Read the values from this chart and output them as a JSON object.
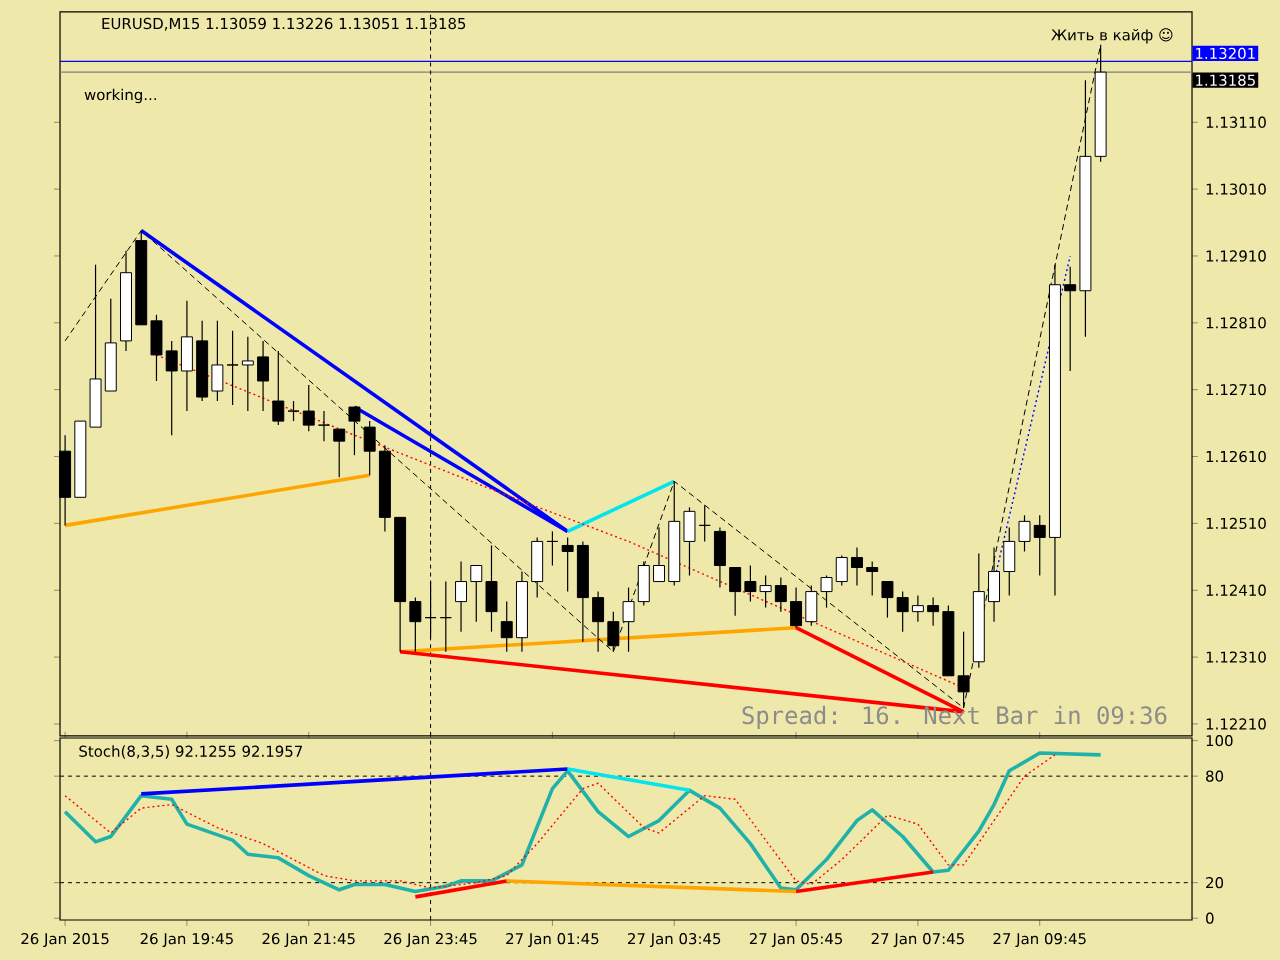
{
  "chart_data": [
    {
      "type": "candlestick",
      "title": "EURUSD,M15  1.13059 1.13226 1.13051 1.13185",
      "annotations": [
        "working...",
        "Жить в кайф ☺",
        "Spread: 16. Next Bar in 09:36"
      ],
      "x": [
        "2015-01-26T17:45",
        "2015-01-26T18:00",
        "2015-01-26T18:15",
        "2015-01-26T18:30",
        "2015-01-26T18:45",
        "2015-01-26T19:00",
        "2015-01-26T19:15",
        "2015-01-26T19:30",
        "2015-01-26T19:45",
        "2015-01-26T20:00",
        "2015-01-26T20:15",
        "2015-01-26T20:30",
        "2015-01-26T20:45",
        "2015-01-26T21:00",
        "2015-01-26T21:15",
        "2015-01-26T21:30",
        "2015-01-26T21:45",
        "2015-01-26T22:00",
        "2015-01-26T22:15",
        "2015-01-26T22:30",
        "2015-01-26T22:45",
        "2015-01-26T23:00",
        "2015-01-26T23:15",
        "2015-01-26T23:30",
        "2015-01-26T23:45",
        "2015-01-27T00:00",
        "2015-01-27T00:15",
        "2015-01-27T00:30",
        "2015-01-27T00:45",
        "2015-01-27T01:00",
        "2015-01-27T01:15",
        "2015-01-27T01:30",
        "2015-01-27T01:45",
        "2015-01-27T02:00",
        "2015-01-27T02:15",
        "2015-01-27T02:30",
        "2015-01-27T02:45",
        "2015-01-27T03:00",
        "2015-01-27T03:15",
        "2015-01-27T03:30",
        "2015-01-27T03:45",
        "2015-01-27T04:00",
        "2015-01-27T04:15",
        "2015-01-27T04:30",
        "2015-01-27T04:45",
        "2015-01-27T05:00",
        "2015-01-27T05:15",
        "2015-01-27T05:30",
        "2015-01-27T05:45",
        "2015-01-27T06:00",
        "2015-01-27T06:15",
        "2015-01-27T06:30",
        "2015-01-27T06:45",
        "2015-01-27T07:00",
        "2015-01-27T07:15",
        "2015-01-27T07:30",
        "2015-01-27T07:45",
        "2015-01-27T08:00",
        "2015-01-27T08:15",
        "2015-01-27T08:30",
        "2015-01-27T08:45",
        "2015-01-27T09:00",
        "2015-01-27T09:15",
        "2015-01-27T09:30",
        "2015-01-27T09:45",
        "2015-01-27T10:00",
        "2015-01-27T10:15",
        "2015-01-27T10:30",
        "2015-01-27T10:45"
      ],
      "ohlc": [
        [
          1.12618,
          1.12642,
          1.12507,
          1.12549
        ],
        [
          1.12549,
          1.12663,
          1.12549,
          1.12663
        ],
        [
          1.12654,
          1.12897,
          1.12654,
          1.12726
        ],
        [
          1.12708,
          1.12846,
          1.12708,
          1.1278
        ],
        [
          1.12783,
          1.12918,
          1.12768,
          1.12885
        ],
        [
          1.12933,
          1.12948,
          1.12807,
          1.12807
        ],
        [
          1.12813,
          1.12822,
          1.12723,
          1.12762
        ],
        [
          1.12768,
          1.12783,
          1.12642,
          1.12738
        ],
        [
          1.12738,
          1.12843,
          1.12678,
          1.12789
        ],
        [
          1.12783,
          1.12813,
          1.12693,
          1.12699
        ],
        [
          1.12708,
          1.12813,
          1.12693,
          1.12747
        ],
        [
          1.12747,
          1.12798,
          1.12687,
          1.12747
        ],
        [
          1.12747,
          1.12789,
          1.12678,
          1.12753
        ],
        [
          1.12759,
          1.12783,
          1.12678,
          1.12723
        ],
        [
          1.12693,
          1.12768,
          1.12657,
          1.12663
        ],
        [
          1.12678,
          1.12693,
          1.12663,
          1.12678
        ],
        [
          1.12678,
          1.12717,
          1.12648,
          1.12657
        ],
        [
          1.12657,
          1.12678,
          1.12633,
          1.12657
        ],
        [
          1.12651,
          1.12651,
          1.12579,
          1.12633
        ],
        [
          1.12684,
          1.12684,
          1.12612,
          1.12663
        ],
        [
          1.12654,
          1.12663,
          1.12582,
          1.12618
        ],
        [
          1.12618,
          1.12627,
          1.12498,
          1.12519
        ],
        [
          1.12519,
          1.12519,
          1.12318,
          1.12393
        ],
        [
          1.12393,
          1.12399,
          1.12318,
          1.12363
        ],
        [
          1.12369,
          1.12423,
          1.12339,
          1.12369
        ],
        [
          1.12369,
          1.12423,
          1.12318,
          1.12369
        ],
        [
          1.12393,
          1.12453,
          1.12348,
          1.12423
        ],
        [
          1.12423,
          1.12447,
          1.12363,
          1.12447
        ],
        [
          1.12423,
          1.12477,
          1.12348,
          1.12378
        ],
        [
          1.12363,
          1.12393,
          1.12318,
          1.12339
        ],
        [
          1.12339,
          1.12438,
          1.12318,
          1.12423
        ],
        [
          1.12423,
          1.12489,
          1.12399,
          1.12483
        ],
        [
          1.12483,
          1.12498,
          1.12447,
          1.12483
        ],
        [
          1.12477,
          1.12489,
          1.12408,
          1.12468
        ],
        [
          1.12477,
          1.12483,
          1.12333,
          1.12399
        ],
        [
          1.12399,
          1.12408,
          1.12318,
          1.12363
        ],
        [
          1.12363,
          1.12378,
          1.12318,
          1.12327
        ],
        [
          1.12363,
          1.12414,
          1.12318,
          1.12393
        ],
        [
          1.12393,
          1.12453,
          1.12387,
          1.12447
        ],
        [
          1.12423,
          1.12504,
          1.12423,
          1.12447
        ],
        [
          1.12423,
          1.12573,
          1.12417,
          1.12513
        ],
        [
          1.12483,
          1.12534,
          1.12432,
          1.12528
        ],
        [
          1.12507,
          1.12537,
          1.12483,
          1.12507
        ],
        [
          1.12498,
          1.12504,
          1.12414,
          1.12447
        ],
        [
          1.12444,
          1.12444,
          1.12372,
          1.12408
        ],
        [
          1.12423,
          1.12447,
          1.12393,
          1.12408
        ],
        [
          1.12408,
          1.12432,
          1.12384,
          1.12417
        ],
        [
          1.12417,
          1.12429,
          1.12378,
          1.12393
        ],
        [
          1.12393,
          1.12414,
          1.12354,
          1.12357
        ],
        [
          1.12363,
          1.12417,
          1.12357,
          1.12408
        ],
        [
          1.12408,
          1.12432,
          1.12384,
          1.12429
        ],
        [
          1.12423,
          1.12462,
          1.12417,
          1.12459
        ],
        [
          1.12459,
          1.12474,
          1.12417,
          1.12444
        ],
        [
          1.12444,
          1.12453,
          1.12402,
          1.12438
        ],
        [
          1.12423,
          1.12423,
          1.12369,
          1.12399
        ],
        [
          1.12399,
          1.12408,
          1.12348,
          1.12378
        ],
        [
          1.12378,
          1.12402,
          1.12363,
          1.12387
        ],
        [
          1.12387,
          1.12399,
          1.12357,
          1.12378
        ],
        [
          1.12378,
          1.12387,
          1.12282,
          1.12282
        ],
        [
          1.12282,
          1.12348,
          1.12234,
          1.12258
        ],
        [
          1.12303,
          1.12465,
          1.12294,
          1.12408
        ],
        [
          1.12393,
          1.12474,
          1.12363,
          1.12438
        ],
        [
          1.12438,
          1.12504,
          1.12402,
          1.12483
        ],
        [
          1.12483,
          1.12522,
          1.12468,
          1.12513
        ],
        [
          1.12507,
          1.12522,
          1.12432,
          1.12489
        ],
        [
          1.12489,
          1.12897,
          1.12402,
          1.12867
        ],
        [
          1.12867,
          1.12894,
          1.12738,
          1.12858
        ],
        [
          1.12858,
          1.13173,
          1.12789,
          1.13059
        ],
        [
          1.13059,
          1.13226,
          1.13051,
          1.13185
        ]
      ],
      "series": [
        {
          "type": "line",
          "color": "#0000ff",
          "line_style": "solid",
          "x": [
            "2015-01-26T19:00",
            "2015-01-27T02:00"
          ],
          "values": [
            1.12948,
            1.12498
          ]
        },
        {
          "type": "line",
          "color": "#0000ff",
          "line_style": "solid",
          "x": [
            "2015-01-26T22:30",
            "2015-01-27T02:00"
          ],
          "values": [
            1.12684,
            1.12498
          ]
        },
        {
          "type": "line",
          "color": "#ffa500",
          "line_style": "solid",
          "x": [
            "2015-01-26T17:45",
            "2015-01-26T22:45"
          ],
          "values": [
            1.12507,
            1.12582
          ]
        },
        {
          "type": "line",
          "color": "#00e5ee",
          "line_style": "solid",
          "x": [
            "2015-01-27T02:00",
            "2015-01-27T03:45"
          ],
          "values": [
            1.12498,
            1.12573
          ]
        },
        {
          "type": "line",
          "color": "#ffa500",
          "line_style": "solid",
          "x": [
            "2015-01-26T23:15",
            "2015-01-27T05:45"
          ],
          "values": [
            1.12318,
            1.12354
          ]
        },
        {
          "type": "line",
          "color": "#ff0000",
          "line_style": "solid",
          "x": [
            "2015-01-26T23:15",
            "2015-01-27T08:30"
          ],
          "values": [
            1.12318,
            1.12228
          ]
        },
        {
          "type": "line",
          "color": "#ff0000",
          "line_style": "solid",
          "x": [
            "2015-01-27T05:45",
            "2015-01-27T08:30"
          ],
          "values": [
            1.12354,
            1.12228
          ]
        },
        {
          "type": "line",
          "color": "#000000",
          "line_style": "dashed",
          "x": [
            "2015-01-26T17:45",
            "2015-01-26T19:00",
            "2015-01-27T02:45",
            "2015-01-27T03:45",
            "2015-01-27T08:30",
            "2015-01-27T10:45"
          ],
          "values": [
            1.12783,
            1.12948,
            1.12318,
            1.12573,
            1.12234,
            1.13226
          ]
        },
        {
          "type": "line",
          "color": "#ff0000",
          "line_style": "dotted",
          "x": [
            "2015-01-26T19:15",
            "2015-01-26T22:30",
            "2015-01-27T01:00",
            "2015-01-27T03:00",
            "2015-01-27T08:30"
          ],
          "values": [
            1.12762,
            1.12642,
            1.12552,
            1.12483,
            1.12264
          ]
        },
        {
          "type": "line",
          "color": "#0000ff",
          "line_style": "dotted",
          "x": [
            "2015-01-27T09:00",
            "2015-01-27T10:15"
          ],
          "values": [
            1.12423,
            1.1291
          ]
        }
      ],
      "xlim": [
        "2015-01-26T17:40",
        "2015-01-27T12:15"
      ],
      "ylim": [
        1.12192,
        1.13275
      ],
      "yticks": [
        {
          "value": 1.1221,
          "label": "1.12210"
        },
        {
          "value": 1.1231,
          "label": "1.12310"
        },
        {
          "value": 1.1241,
          "label": "1.12410"
        },
        {
          "value": 1.1251,
          "label": "1.12510"
        },
        {
          "value": 1.1261,
          "label": "1.12610"
        },
        {
          "value": 1.1271,
          "label": "1.12710"
        },
        {
          "value": 1.1281,
          "label": "1.12810"
        },
        {
          "value": 1.1291,
          "label": "1.12910"
        },
        {
          "value": 1.1301,
          "label": "1.13010"
        },
        {
          "value": 1.1311,
          "label": "1.13110"
        }
      ],
      "ref_lines": [
        {
          "axis": "y",
          "value": 1.13201,
          "label": "1.13201",
          "color": "#0000ff",
          "line_style": "solid"
        },
        {
          "axis": "y",
          "value": 1.13185,
          "label": "1.13185",
          "color": "#808080",
          "line_style": "solid"
        },
        {
          "axis": "x",
          "value": "2015-01-26T23:45",
          "color": "#000000",
          "line_style": "dashed"
        }
      ],
      "tick_labels": "y"
    },
    {
      "type": "line",
      "title": "Stoch(8,3,5) 92.1255 92.1957",
      "series": [
        {
          "color": "#20b2aa",
          "line_style": "solid",
          "x": [
            "2015-01-26T17:45",
            "2015-01-26T18:15",
            "2015-01-26T18:30",
            "2015-01-26T19:00",
            "2015-01-26T19:30",
            "2015-01-26T19:45",
            "2015-01-26T20:30",
            "2015-01-26T20:45",
            "2015-01-26T21:15",
            "2015-01-26T21:45",
            "2015-01-26T22:15",
            "2015-01-26T22:30",
            "2015-01-26T23:00",
            "2015-01-26T23:30",
            "2015-01-27T00:00",
            "2015-01-27T00:15",
            "2015-01-27T00:45",
            "2015-01-27T01:15",
            "2015-01-27T01:45",
            "2015-01-27T02:00",
            "2015-01-27T02:30",
            "2015-01-27T03:00",
            "2015-01-27T03:30",
            "2015-01-27T04:00",
            "2015-01-27T04:30",
            "2015-01-27T05:00",
            "2015-01-27T05:30",
            "2015-01-27T05:45",
            "2015-01-27T06:15",
            "2015-01-27T06:45",
            "2015-01-27T07:00",
            "2015-01-27T07:30",
            "2015-01-27T08:00",
            "2015-01-27T08:15",
            "2015-01-27T08:45",
            "2015-01-27T09:00",
            "2015-01-27T09:15",
            "2015-01-27T09:45",
            "2015-01-27T10:45"
          ],
          "values": [
            60,
            43,
            46,
            69,
            67,
            53,
            44,
            36,
            34,
            24,
            16,
            19,
            19,
            15,
            18,
            21,
            21,
            30,
            73,
            83,
            60,
            46,
            55,
            72,
            62,
            42,
            17,
            16,
            33,
            55,
            61,
            46,
            26,
            27,
            49,
            64,
            83,
            93,
            92
          ]
        },
        {
          "color": "#ff0000",
          "line_style": "dotted",
          "x": [
            "2015-01-26T17:45",
            "2015-01-26T18:30",
            "2015-01-26T19:00",
            "2015-01-26T19:30",
            "2015-01-26T20:15",
            "2015-01-26T21:00",
            "2015-01-26T21:30",
            "2015-01-26T22:00",
            "2015-01-26T22:30",
            "2015-01-26T23:15",
            "2015-01-26T23:45",
            "2015-01-27T00:30",
            "2015-01-27T01:00",
            "2015-01-27T01:30",
            "2015-01-27T02:15",
            "2015-01-27T02:30",
            "2015-01-27T03:15",
            "2015-01-27T03:30",
            "2015-01-27T04:15",
            "2015-01-27T04:45",
            "2015-01-27T05:15",
            "2015-01-27T05:45",
            "2015-01-27T06:00",
            "2015-01-27T06:30",
            "2015-01-27T07:15",
            "2015-01-27T07:45",
            "2015-01-27T08:15",
            "2015-01-27T08:30",
            "2015-01-27T09:00",
            "2015-01-27T09:30",
            "2015-01-27T10:00"
          ],
          "values": [
            69,
            48,
            62,
            64,
            51,
            42,
            33,
            24,
            21,
            21,
            17,
            20,
            24,
            42,
            73,
            76,
            51,
            48,
            69,
            67,
            44,
            21,
            19,
            33,
            58,
            53,
            30,
            30,
            55,
            80,
            92
          ]
        },
        {
          "color": "#0000ff",
          "line_style": "solid",
          "x": [
            "2015-01-26T19:00",
            "2015-01-27T02:00"
          ],
          "values": [
            70,
            84
          ]
        },
        {
          "color": "#00e5ee",
          "line_style": "solid",
          "x": [
            "2015-01-27T02:00",
            "2015-01-27T04:00"
          ],
          "values": [
            84,
            72
          ]
        },
        {
          "color": "#ff0000",
          "line_style": "solid",
          "x": [
            "2015-01-26T23:30",
            "2015-01-27T01:00"
          ],
          "values": [
            12,
            21
          ]
        },
        {
          "color": "#ffa500",
          "line_style": "solid",
          "x": [
            "2015-01-27T01:00",
            "2015-01-27T05:45"
          ],
          "values": [
            21,
            15
          ]
        },
        {
          "color": "#ff0000",
          "line_style": "solid",
          "x": [
            "2015-01-27T05:45",
            "2015-01-27T08:00"
          ],
          "values": [
            15,
            26
          ]
        }
      ],
      "xlim": [
        "2015-01-26T17:40",
        "2015-01-27T12:15"
      ],
      "ylim": [
        -1,
        101.5
      ],
      "yticks": [
        0,
        20,
        80,
        100
      ],
      "xticks": [
        {
          "value": "2015-01-26T17:45",
          "label": "26 Jan 2015"
        },
        {
          "value": "2015-01-26T19:45",
          "label": "26 Jan 19:45"
        },
        {
          "value": "2015-01-26T21:45",
          "label": "26 Jan 21:45"
        },
        {
          "value": "2015-01-26T23:45",
          "label": "26 Jan 23:45"
        },
        {
          "value": "2015-01-27T01:45",
          "label": "27 Jan 01:45"
        },
        {
          "value": "2015-01-27T03:45",
          "label": "27 Jan 03:45"
        },
        {
          "value": "2015-01-27T05:45",
          "label": "27 Jan 05:45"
        },
        {
          "value": "2015-01-27T07:45",
          "label": "27 Jan 07:45"
        },
        {
          "value": "2015-01-27T09:45",
          "label": "27 Jan 09:45"
        }
      ],
      "ref_lines": [
        {
          "axis": "y",
          "value": 80,
          "color": "#000000",
          "line_style": "dashed"
        },
        {
          "axis": "y",
          "value": 20,
          "color": "#000000",
          "line_style": "dashed"
        },
        {
          "axis": "x",
          "value": "2015-01-26T23:45",
          "color": "#000000",
          "line_style": "dashed"
        }
      ]
    }
  ]
}
